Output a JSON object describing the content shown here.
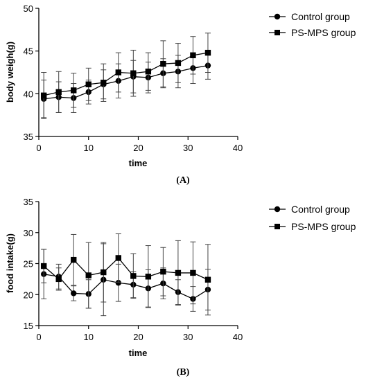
{
  "chart_data": [
    {
      "type": "line",
      "caption": "(A)",
      "xlabel": "time",
      "ylabel": "body weigh(g)",
      "xlim": [
        0,
        40
      ],
      "ylim": [
        35,
        50
      ],
      "xticks": [
        "0",
        "10",
        "20",
        "30",
        "40"
      ],
      "yticks": [
        "35",
        "40",
        "45",
        "50"
      ],
      "legend_position": "right",
      "x": [
        1,
        4,
        7,
        10,
        13,
        16,
        19,
        22,
        25,
        28,
        31,
        34
      ],
      "series": [
        {
          "name": "Control group",
          "marker": "circle",
          "values": [
            39.4,
            39.6,
            39.5,
            40.2,
            41.1,
            41.5,
            42.0,
            41.9,
            42.4,
            42.6,
            43.0,
            43.3
          ],
          "errors": [
            2.2,
            1.8,
            1.7,
            1.4,
            1.7,
            2.0,
            1.9,
            1.8,
            1.7,
            1.9,
            1.8,
            1.6
          ]
        },
        {
          "name": "PS-MPS group",
          "marker": "square",
          "values": [
            39.8,
            40.2,
            40.4,
            41.1,
            41.3,
            42.5,
            42.4,
            42.6,
            43.5,
            43.6,
            44.5,
            44.8
          ],
          "errors": [
            2.7,
            2.4,
            2.0,
            1.9,
            2.2,
            2.3,
            2.7,
            2.2,
            2.7,
            2.3,
            2.2,
            2.3
          ]
        }
      ]
    },
    {
      "type": "line",
      "caption": "(B)",
      "xlabel": "time",
      "ylabel": "food intake(g)",
      "xlim": [
        0,
        40
      ],
      "ylim": [
        15,
        35
      ],
      "xticks": [
        "0",
        "10",
        "20",
        "30",
        "40"
      ],
      "yticks": [
        "15",
        "20",
        "25",
        "30",
        "35"
      ],
      "legend_position": "right",
      "x": [
        1,
        4,
        7,
        10,
        13,
        16,
        19,
        22,
        25,
        28,
        31,
        34
      ],
      "series": [
        {
          "name": "Control group",
          "marker": "circle",
          "values": [
            23.3,
            22.9,
            20.2,
            20.1,
            22.4,
            21.9,
            21.6,
            21.0,
            21.8,
            20.4,
            19.3,
            20.8
          ],
          "errors": [
            4.0,
            2.0,
            1.2,
            2.3,
            5.8,
            3.0,
            2.1,
            3.0,
            2.5,
            2.0,
            2.0,
            3.3
          ]
        },
        {
          "name": "PS-MPS group",
          "marker": "square",
          "values": [
            24.6,
            22.5,
            25.6,
            23.1,
            23.6,
            25.9,
            23.0,
            22.9,
            23.7,
            23.5,
            23.5,
            22.4
          ],
          "errors": [
            2.7,
            1.8,
            4.1,
            5.3,
            4.8,
            3.9,
            3.6,
            5.0,
            3.9,
            5.2,
            5.0,
            5.7
          ]
        }
      ]
    }
  ]
}
